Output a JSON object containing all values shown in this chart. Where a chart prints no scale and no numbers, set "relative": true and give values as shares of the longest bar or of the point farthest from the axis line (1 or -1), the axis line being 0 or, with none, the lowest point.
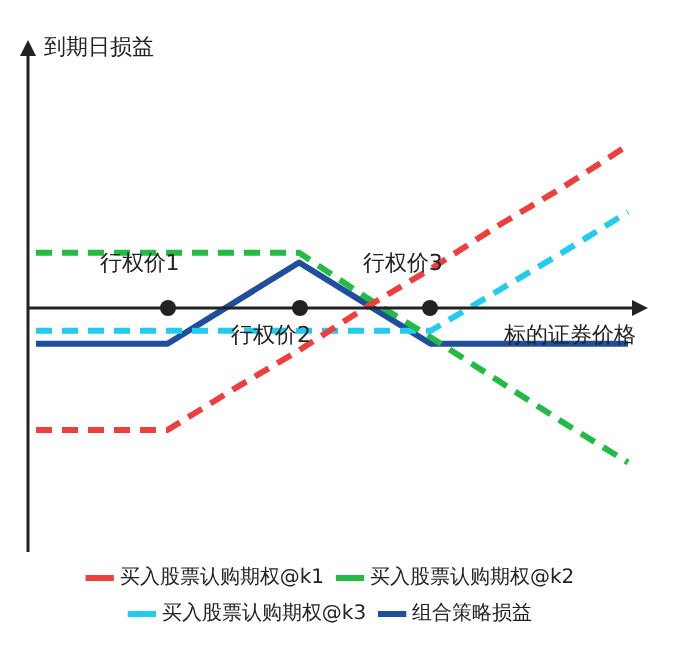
{
  "chart_data": {
    "type": "line",
    "relative": true,
    "xlabel": "标的证券价格",
    "ylabel": "到期日损益",
    "categories": [
      null,
      null,
      null,
      null,
      null,
      null,
      null,
      null,
      null,
      null
    ],
    "series": [
      {
        "name": "买入股票认购期权@k1",
        "color": "#ee3f3f",
        "line_style": "dashed",
        "values": [
          -0.75,
          -0.75,
          -0.75,
          -0.5,
          -0.26,
          0,
          0.24,
          0.5,
          0.74,
          1
        ]
      },
      {
        "name": "买入股票认购期权@k2",
        "color": "#22bb44",
        "line_style": "dashed",
        "values": [
          0.34,
          0.34,
          0.34,
          0.34,
          0.34,
          0.07,
          -0.18,
          -0.44,
          -0.7,
          -0.95
        ]
      },
      {
        "name": "买入股票认购期权@k3",
        "color": "#22ccee",
        "line_style": "dashed",
        "values": [
          -0.14,
          -0.14,
          -0.14,
          -0.14,
          -0.14,
          -0.14,
          -0.14,
          0.1,
          0.34,
          0.59
        ]
      },
      {
        "name": "组合策略损益",
        "color": "#1f4e9a",
        "line_style": "solid",
        "values": [
          -0.22,
          -0.22,
          -0.22,
          0.03,
          0.28,
          0.03,
          -0.22,
          -0.22,
          -0.22,
          -0.22
        ]
      }
    ],
    "annotations": [
      "行权价1",
      "行权价2",
      "行权价3"
    ],
    "legend": "bottom"
  }
}
